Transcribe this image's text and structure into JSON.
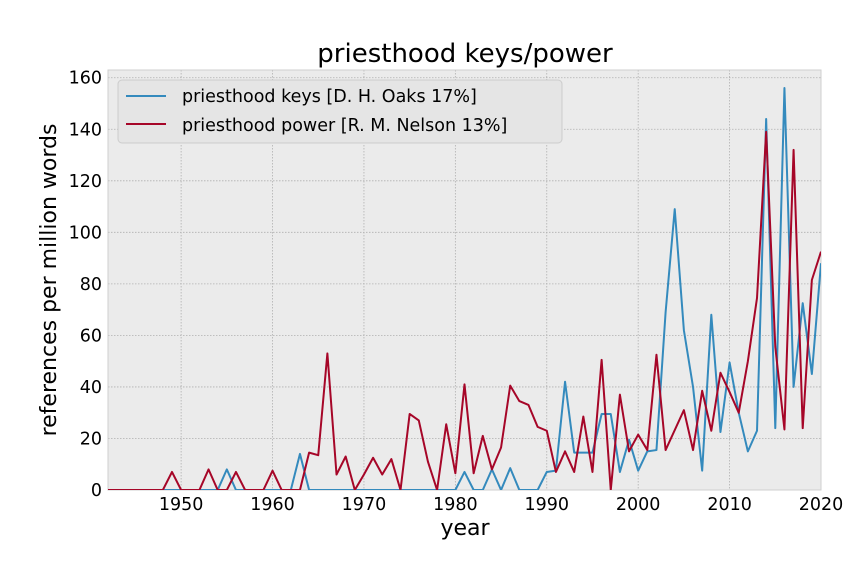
{
  "chart_data": {
    "type": "line",
    "title": "priesthood keys/power",
    "xlabel": "year",
    "ylabel": "references per million words",
    "xlim": [
      1942,
      2020
    ],
    "ylim": [
      0,
      163
    ],
    "xticks": [
      1950,
      1960,
      1970,
      1980,
      1990,
      2000,
      2010,
      2020
    ],
    "yticks": [
      0,
      20,
      40,
      60,
      80,
      100,
      120,
      140,
      160
    ],
    "grid": true,
    "legend_position": "top-left",
    "background": "#ebebeb",
    "series": [
      {
        "name": "priesthood keys [D. H. Oaks 17%]",
        "color": "#348abd",
        "points": [
          [
            1942,
            0
          ],
          [
            1943,
            0
          ],
          [
            1944,
            0
          ],
          [
            1945,
            0
          ],
          [
            1946,
            0
          ],
          [
            1947,
            0
          ],
          [
            1948,
            0
          ],
          [
            1949,
            0
          ],
          [
            1950,
            0
          ],
          [
            1951,
            0
          ],
          [
            1952,
            0
          ],
          [
            1953,
            0
          ],
          [
            1954,
            0
          ],
          [
            1955,
            8
          ],
          [
            1956,
            0
          ],
          [
            1957,
            0
          ],
          [
            1958,
            0
          ],
          [
            1959,
            0
          ],
          [
            1960,
            0
          ],
          [
            1961,
            0
          ],
          [
            1962,
            0
          ],
          [
            1963,
            14
          ],
          [
            1964,
            0
          ],
          [
            1965,
            0
          ],
          [
            1966,
            0
          ],
          [
            1967,
            0
          ],
          [
            1968,
            0
          ],
          [
            1969,
            0
          ],
          [
            1970,
            0
          ],
          [
            1971,
            0
          ],
          [
            1972,
            0
          ],
          [
            1973,
            0
          ],
          [
            1974,
            0
          ],
          [
            1975,
            0
          ],
          [
            1976,
            0
          ],
          [
            1977,
            0
          ],
          [
            1978,
            0
          ],
          [
            1979,
            0
          ],
          [
            1980,
            0
          ],
          [
            1981,
            7
          ],
          [
            1982,
            0
          ],
          [
            1983,
            0
          ],
          [
            1984,
            8
          ],
          [
            1985,
            0
          ],
          [
            1986,
            8.5
          ],
          [
            1987,
            0
          ],
          [
            1988,
            0
          ],
          [
            1989,
            0
          ],
          [
            1990,
            7
          ],
          [
            1991,
            7.5
          ],
          [
            1992,
            42
          ],
          [
            1993,
            14.5
          ],
          [
            1994,
            14.5
          ],
          [
            1995,
            14.5
          ],
          [
            1996,
            29.5
          ],
          [
            1997,
            29.5
          ],
          [
            1998,
            7
          ],
          [
            1999,
            19.5
          ],
          [
            2000,
            7.5
          ],
          [
            2001,
            15
          ],
          [
            2002,
            15.5
          ],
          [
            2003,
            69
          ],
          [
            2004,
            109
          ],
          [
            2005,
            62
          ],
          [
            2006,
            40
          ],
          [
            2007,
            7.5
          ],
          [
            2008,
            68
          ],
          [
            2009,
            22.5
          ],
          [
            2010,
            49.5
          ],
          [
            2011,
            30
          ],
          [
            2012,
            15
          ],
          [
            2013,
            23
          ],
          [
            2014,
            144
          ],
          [
            2015,
            24
          ],
          [
            2016,
            156
          ],
          [
            2017,
            40
          ],
          [
            2018,
            72.5
          ],
          [
            2019,
            45
          ],
          [
            2020,
            88
          ]
        ]
      },
      {
        "name": "priesthood power [R. M. Nelson 13%]",
        "color": "#a60628",
        "points": [
          [
            1942,
            0
          ],
          [
            1943,
            0
          ],
          [
            1944,
            0
          ],
          [
            1945,
            0
          ],
          [
            1946,
            0
          ],
          [
            1947,
            0
          ],
          [
            1948,
            0
          ],
          [
            1949,
            7
          ],
          [
            1950,
            0
          ],
          [
            1951,
            0
          ],
          [
            1952,
            0
          ],
          [
            1953,
            8
          ],
          [
            1954,
            0
          ],
          [
            1955,
            0
          ],
          [
            1956,
            7
          ],
          [
            1957,
            0
          ],
          [
            1958,
            0
          ],
          [
            1959,
            0
          ],
          [
            1960,
            7.5
          ],
          [
            1961,
            0
          ],
          [
            1962,
            0
          ],
          [
            1963,
            0
          ],
          [
            1964,
            14.5
          ],
          [
            1965,
            13.5
          ],
          [
            1966,
            53
          ],
          [
            1967,
            6
          ],
          [
            1968,
            13
          ],
          [
            1969,
            0
          ],
          [
            1970,
            6
          ],
          [
            1971,
            12.5
          ],
          [
            1972,
            6
          ],
          [
            1973,
            12
          ],
          [
            1974,
            0
          ],
          [
            1975,
            29.5
          ],
          [
            1976,
            27
          ],
          [
            1977,
            11
          ],
          [
            1978,
            0
          ],
          [
            1979,
            25.5
          ],
          [
            1980,
            6.5
          ],
          [
            1981,
            41
          ],
          [
            1982,
            6.5
          ],
          [
            1983,
            21
          ],
          [
            1984,
            8
          ],
          [
            1985,
            16.5
          ],
          [
            1986,
            40.5
          ],
          [
            1987,
            34.5
          ],
          [
            1988,
            33
          ],
          [
            1989,
            24.5
          ],
          [
            1990,
            23
          ],
          [
            1991,
            7
          ],
          [
            1992,
            15
          ],
          [
            1993,
            7
          ],
          [
            1994,
            28.5
          ],
          [
            1995,
            7
          ],
          [
            1996,
            50.5
          ],
          [
            1997,
            0
          ],
          [
            1998,
            37
          ],
          [
            1999,
            15
          ],
          [
            2000,
            21.5
          ],
          [
            2001,
            15.5
          ],
          [
            2002,
            52.5
          ],
          [
            2003,
            15.5
          ],
          [
            2005,
            31
          ],
          [
            2006,
            15.5
          ],
          [
            2007,
            38.5
          ],
          [
            2008,
            23
          ],
          [
            2009,
            45.5
          ],
          [
            2010,
            38
          ],
          [
            2011,
            30
          ],
          [
            2012,
            50
          ],
          [
            2013,
            74.5
          ],
          [
            2014,
            139
          ],
          [
            2015,
            55.5
          ],
          [
            2016,
            23.5
          ],
          [
            2017,
            132
          ],
          [
            2018,
            24
          ],
          [
            2019,
            81.5
          ],
          [
            2020,
            92.5
          ]
        ]
      }
    ]
  }
}
